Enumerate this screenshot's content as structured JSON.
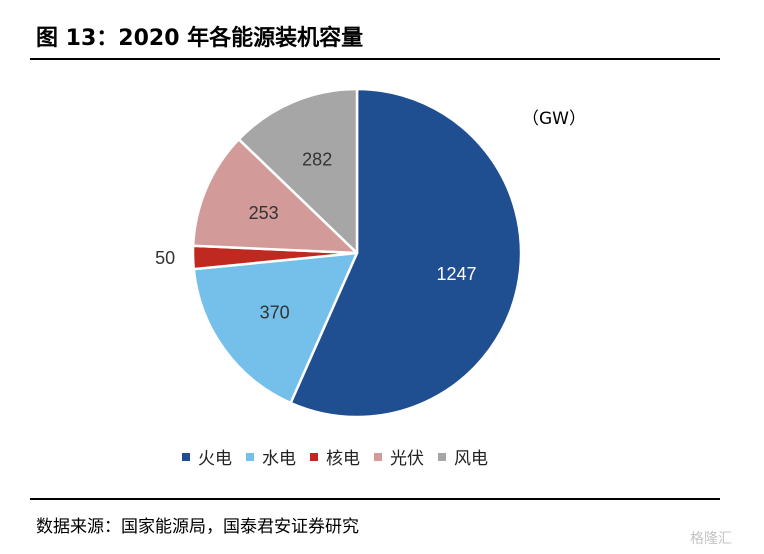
{
  "title": "图 13：2020 年各能源装机容量",
  "source": "数据来源：国家能源局，国泰君安证券研究",
  "watermark": "格隆汇",
  "chart_data": {
    "type": "pie",
    "unit": "（GW）",
    "slices": [
      {
        "name": "火电",
        "value": 1247,
        "color": "#1f4e91",
        "label_color": "#ffffff"
      },
      {
        "name": "水电",
        "value": 370,
        "color": "#74c0ea",
        "label_color": "#333333"
      },
      {
        "name": "核电",
        "value": 50,
        "color": "#c0291f",
        "label_color": "#333333"
      },
      {
        "name": "光伏",
        "value": 253,
        "color": "#d39a9a",
        "label_color": "#333333"
      },
      {
        "name": "风电",
        "value": 282,
        "color": "#a6a6a6",
        "label_color": "#333333"
      }
    ],
    "legend_position": "bottom"
  }
}
